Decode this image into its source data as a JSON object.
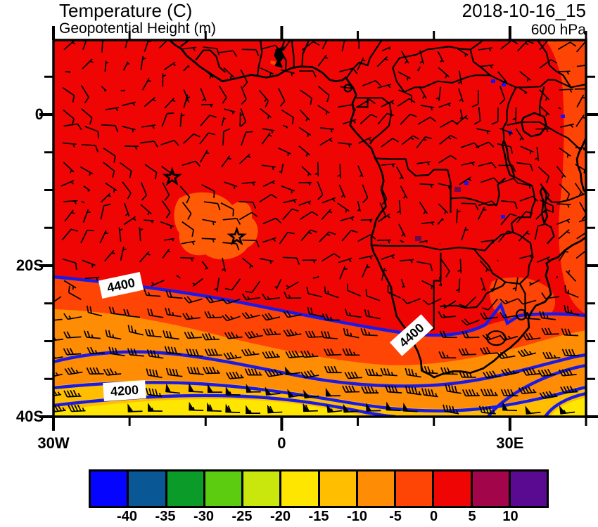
{
  "header": {
    "title": "Temperature (C)",
    "subtitle": "Geopotential Height (m)",
    "datetime": "2018-10-16_15",
    "level": "600 hPa"
  },
  "axes": {
    "y_ticks": [
      {
        "label": "0",
        "lat": 0
      },
      {
        "label": "20S",
        "lat": -20
      },
      {
        "label": "40S",
        "lat": -40
      }
    ],
    "x_ticks": [
      {
        "label": "30W",
        "lon": -30
      },
      {
        "label": "0",
        "lon": 0
      },
      {
        "label": "30E",
        "lon": 30
      }
    ]
  },
  "contours": {
    "labels": [
      "4400",
      "4400",
      "4200"
    ],
    "line_color": "#1A1AE8"
  },
  "map_colors": {
    "red": "#F00505",
    "orange_red": "#FF4505",
    "orange": "#FF8C05",
    "amber": "#FFBE00",
    "yellow": "#FFE600",
    "cool_patch": "#FF5A05",
    "speck_blue": "#1414FA",
    "speck_purple": "#6A0A50",
    "geography": "#000000"
  },
  "markers": [
    {
      "symbol": "star",
      "lon": -14.4,
      "lat": -8.3
    },
    {
      "symbol": "star",
      "lon": -5.9,
      "lat": -16.2
    }
  ],
  "colorbar": {
    "tick_labels": [
      "-40",
      "-35",
      "-30",
      "-25",
      "-20",
      "-15",
      "-10",
      "-5",
      "0",
      "5",
      "10"
    ],
    "colors": [
      "#0505FF",
      "#0A5796",
      "#0A9B28",
      "#5BCC0F",
      "#C9E60D",
      "#FFE600",
      "#FFBE00",
      "#FF8C05",
      "#FF4505",
      "#F00505",
      "#A3054B",
      "#5A0A91"
    ]
  },
  "chart_data": {
    "type": "heatmap",
    "title": "Temperature (C)",
    "overlay_field": "Geopotential Height (m)",
    "level": "600 hPa",
    "valid": "2018-10-16_15",
    "x_axis": {
      "tick_labels": [
        "30W",
        "0",
        "30E"
      ],
      "range_deg_lon": [
        -30,
        40
      ]
    },
    "y_axis": {
      "tick_labels": [
        "0",
        "20S",
        "40S"
      ],
      "range_deg_lat": [
        -40,
        10
      ]
    },
    "colorbar_levels_C": [
      -40,
      -35,
      -30,
      -25,
      -20,
      -15,
      -10,
      -5,
      0,
      5,
      10
    ],
    "colorbar_colors": [
      "#0505FF",
      "#0A5796",
      "#0A9B28",
      "#5BCC0F",
      "#C9E60D",
      "#FFE600",
      "#FFBE00",
      "#FF8C05",
      "#FF4505",
      "#F00505",
      "#A3054B",
      "#5A0A91"
    ],
    "geopotential_contour_labels_m": [
      4400,
      4400,
      4200
    ],
    "wind_barbs": true,
    "temperature_pattern": "0 to 5 C (red) over most of tropical Africa and Atlantic; bands cooling southward: -5 to 0, -10 to -5, -15 to -10, -20 to -15 C (yellow) toward 40S",
    "station_markers": [
      {
        "symbol": "star",
        "lon": -14.4,
        "lat": -8.3
      },
      {
        "symbol": "star",
        "lon": -5.9,
        "lat": -16.2
      }
    ]
  }
}
